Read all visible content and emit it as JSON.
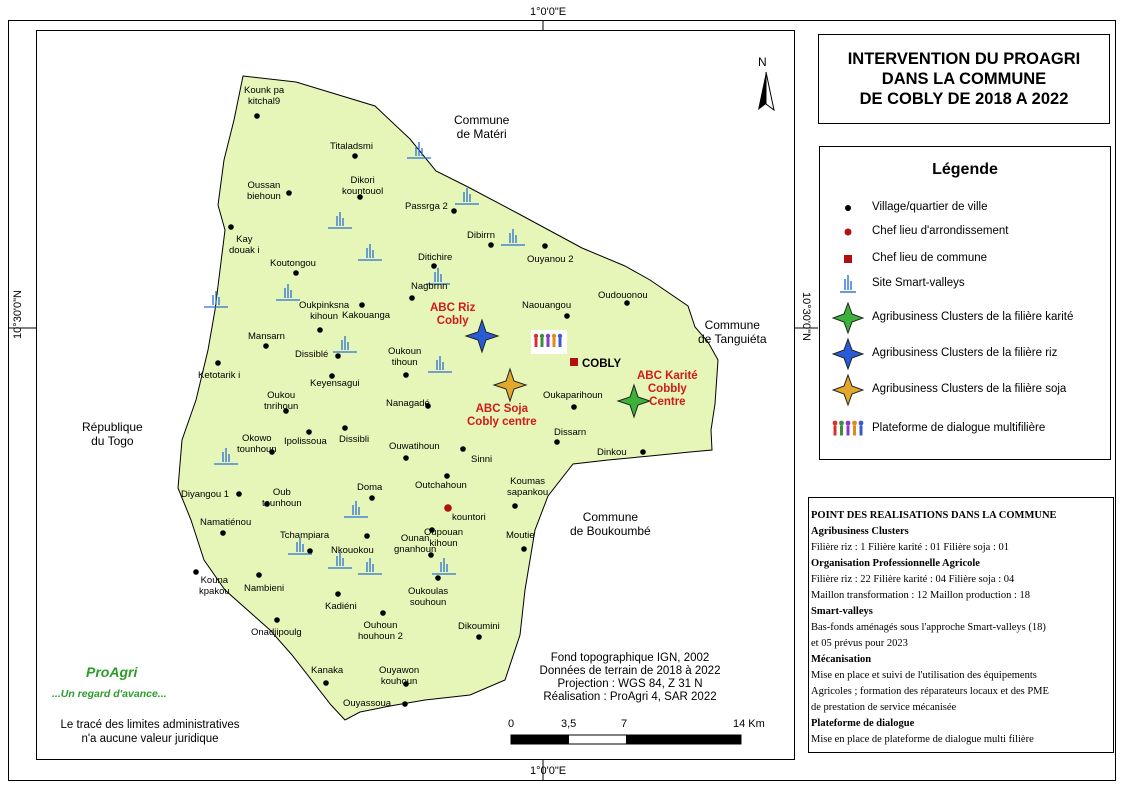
{
  "coords": {
    "top": "1°0'0\"E",
    "bottom": "1°0'0\"E",
    "left": "10°30'0\"N",
    "right": "10°30'0\"N"
  },
  "north": "N",
  "title": [
    "INTERVENTION DU PROAGRI",
    "DANS LA COMMUNE",
    "DE COBLY DE 2018 A 2022"
  ],
  "legend": {
    "title": "Légende",
    "items": [
      {
        "symbol": "village-dot",
        "label": "Village/quartier de ville"
      },
      {
        "symbol": "arrondissement-dot",
        "label": "Chef lieu d'arrondissement"
      },
      {
        "symbol": "commune-square",
        "label": "Chef lieu de commune"
      },
      {
        "symbol": "smart-valley-icon",
        "label": "Site Smart-valleys"
      },
      {
        "symbol": "star-green",
        "label": "Agribusiness Clusters de la filière karité"
      },
      {
        "symbol": "star-blue",
        "label": "Agribusiness Clusters de la filière riz"
      },
      {
        "symbol": "star-orange",
        "label": "Agribusiness Clusters de la filière soja"
      },
      {
        "symbol": "platform-icon",
        "label": "Plateforme de dialogue multifilière"
      }
    ]
  },
  "colors": {
    "commune_fill": "#e6f5b8",
    "village": "#000000",
    "arrondissement": "#b01010",
    "commune_seat": "#b01010",
    "star_green": "#3bb33b",
    "star_blue": "#2a5bd6",
    "star_orange": "#e1a82a",
    "smart_valley": "#2b6fd6",
    "label_red": "#d21a1a",
    "logo_green": "#2a9d2a"
  },
  "neighbors": {
    "materi": "Commune\nde Matéri",
    "tanguieta": "Commune\nde Tanguiéta",
    "togo": "République\ndu Togo",
    "boukoumbe": "Commune\nde Boukoumbé"
  },
  "villages": [
    {
      "name": "Kounk pa\nkitchal9"
    },
    {
      "name": "Titaladsmi"
    },
    {
      "name": "Oussan\nbiehoun"
    },
    {
      "name": "Dikori\nkountouol"
    },
    {
      "name": "Passrga 2"
    },
    {
      "name": "Dibirrn"
    },
    {
      "name": "Ouyanou 2"
    },
    {
      "name": "Kay\ndouak i"
    },
    {
      "name": "Koutongou"
    },
    {
      "name": "Ditichire"
    },
    {
      "name": "Nagbrnn"
    },
    {
      "name": "Naouangou"
    },
    {
      "name": "Oudouonou"
    },
    {
      "name": "Oukpinksna\nkihoun"
    },
    {
      "name": "Kakouanga"
    },
    {
      "name": "Mansarn"
    },
    {
      "name": "Dissiblé"
    },
    {
      "name": "Oukoun\ntihoun"
    },
    {
      "name": "Ketotarik i"
    },
    {
      "name": "Keyensagui"
    },
    {
      "name": "Oukaparihoun"
    },
    {
      "name": "Oukou\ntnrihoun"
    },
    {
      "name": "Nanagadé"
    },
    {
      "name": "Dissarn"
    },
    {
      "name": "Okowo\ntounhoun"
    },
    {
      "name": "Ipolissoua"
    },
    {
      "name": "Dissibli"
    },
    {
      "name": "Ouwatihoun"
    },
    {
      "name": "Dinkou"
    },
    {
      "name": "Sinni"
    },
    {
      "name": "Diyangou 1"
    },
    {
      "name": "Oub\ntounhoun"
    },
    {
      "name": "Outchahoun"
    },
    {
      "name": "Koumas\nsapankou"
    },
    {
      "name": "Doma"
    },
    {
      "name": "Namatiénou"
    },
    {
      "name": "Tchampiara"
    },
    {
      "name": "Nkouokou"
    },
    {
      "name": "Ounan\ngnanhoun"
    },
    {
      "name": "Oupouan\nkihoun"
    },
    {
      "name": "Moutie"
    },
    {
      "name": "Kouna\nkpakou"
    },
    {
      "name": "Nambieni"
    },
    {
      "name": "Oukoulas\nsouhoun"
    },
    {
      "name": "Kadiéni"
    },
    {
      "name": "Onadjipoulg"
    },
    {
      "name": "Ouhoun\nhouhoun 2"
    },
    {
      "name": "Dikoumini"
    },
    {
      "name": "Kanaka"
    },
    {
      "name": "Ouyawon\nkouhoun"
    },
    {
      "name": "Ouyassoua"
    }
  ],
  "arrondissement": {
    "name": "kountori"
  },
  "commune_seat": {
    "name": "COBLY"
  },
  "clusters": [
    {
      "name": "ABC Riz\nCobly",
      "type": "riz"
    },
    {
      "name": "ABC Soja\nCobly centre",
      "type": "soja"
    },
    {
      "name": "ABC Karité\nCobbly\nCentre",
      "type": "karite"
    }
  ],
  "logo": {
    "name": "ProAgri",
    "tagline": "...Un regard d'avance..."
  },
  "disclaimer": "Le tracé des limites administratives\nn'a aucune valeur juridique",
  "credits": [
    "Fond topographique IGN, 2002",
    "Données de terrain de 2018 à 2022",
    "Projection : WGS 84, Z 31 N",
    "Réalisation : ProAgri 4, SAR 2022"
  ],
  "scale": {
    "ticks": [
      "0",
      "3,5",
      "7",
      "14 Km"
    ]
  },
  "info": [
    {
      "bold": true,
      "text": "POINT DES REALISATIONS DANS LA COMMUNE"
    },
    {
      "bold": true,
      "text": "Agribusiness Clusters"
    },
    {
      "bold": false,
      "text": "Filière riz : 1   Filière karité : 01  Filière soja : 01"
    },
    {
      "bold": true,
      "text": "Organisation Professionnelle Agricole"
    },
    {
      "bold": false,
      "text": "Filière riz : 22   Filière karité : 04  Filière soja : 04"
    },
    {
      "bold": false,
      "text": "Maillon transformation : 12   Maillon production : 18"
    },
    {
      "bold": true,
      "text": "Smart-valleys"
    },
    {
      "bold": false,
      "text": "Bas-fonds aménagés sous l'approche Smart-valleys (18)"
    },
    {
      "bold": false,
      "text": "et 05 prévus pour 2023"
    },
    {
      "bold": true,
      "text": "Mécanisation"
    },
    {
      "bold": false,
      "text": "Mise en place et suivi de l'utilisation des équipements"
    },
    {
      "bold": false,
      "text": "Agricoles ; formation des réparateurs locaux et des PME"
    },
    {
      "bold": false,
      "text": "de prestation de service mécanisée"
    },
    {
      "bold": true,
      "text": "Plateforme de dialogue"
    },
    {
      "bold": false,
      "text": "Mise en place de plateforme de dialogue multi filière"
    }
  ]
}
